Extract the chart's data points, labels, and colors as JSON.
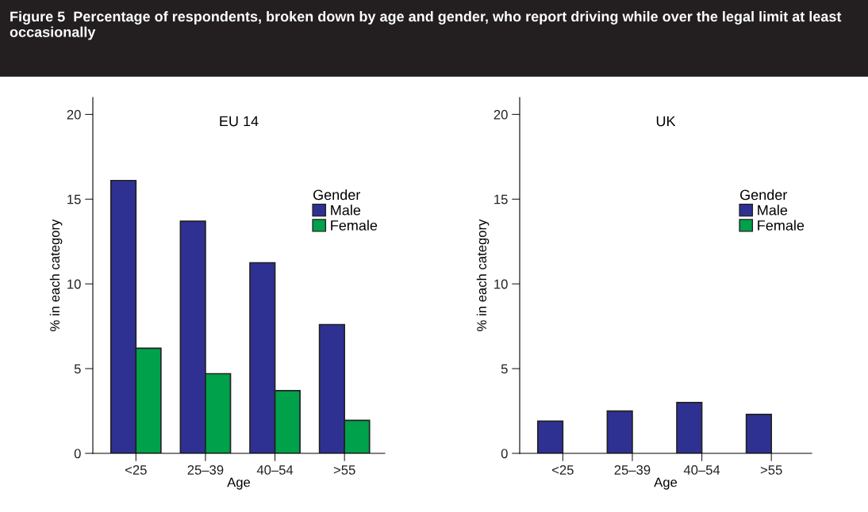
{
  "chart_data": [
    {
      "type": "bar",
      "title": "Figure 5  Percentage of respondents, broken down by age and gender, who report driving while over the legal limit at least occasionally",
      "subtitle": "EU 14",
      "xlabel": "Age",
      "ylabel": "% in each category",
      "categories": [
        "<25",
        "25–39",
        "40–54",
        ">55"
      ],
      "ylim": [
        0,
        21
      ],
      "yticks": [
        0,
        5,
        10,
        15,
        20
      ],
      "legend": "right",
      "legend_title": "Gender",
      "grid": false,
      "series": [
        {
          "name": "Male",
          "color": "#2e3192",
          "values": [
            16.1,
            13.7,
            11.25,
            7.6
          ]
        },
        {
          "name": "Female",
          "color": "#00a14b",
          "values": [
            6.2,
            4.7,
            3.7,
            1.95
          ]
        }
      ]
    },
    {
      "type": "bar",
      "subtitle": "UK",
      "xlabel": "Age",
      "ylabel": "% in each category",
      "categories": [
        "<25",
        "25–39",
        "40–54",
        ">55"
      ],
      "ylim": [
        0,
        21
      ],
      "yticks": [
        0,
        5,
        10,
        15,
        20
      ],
      "legend": "right",
      "legend_title": "Gender",
      "grid": false,
      "series": [
        {
          "name": "Male",
          "color": "#2e3192",
          "values": [
            1.9,
            2.5,
            3.0,
            2.3
          ]
        },
        {
          "name": "Female",
          "color": "#00a14b",
          "values": [
            null,
            null,
            null,
            null
          ]
        }
      ]
    }
  ]
}
